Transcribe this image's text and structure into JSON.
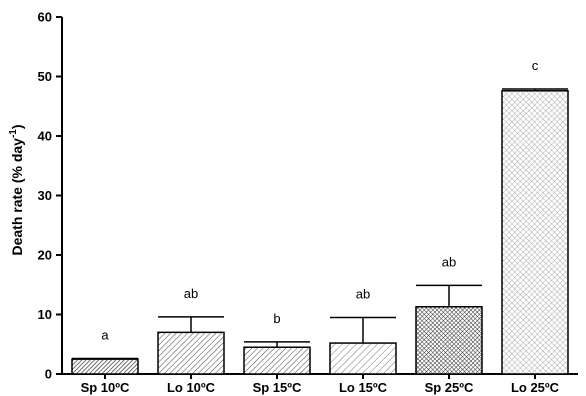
{
  "chart_data": {
    "type": "bar",
    "categories": [
      "Sp 10ºC",
      "Lo 10ºC",
      "Sp 15ºC",
      "Lo 15ºC",
      "Sp 25ºC",
      "Lo 25ºC"
    ],
    "values": [
      2.5,
      7.0,
      4.5,
      5.2,
      11.3,
      47.6
    ],
    "error": [
      0.1,
      2.6,
      0.9,
      4.3,
      3.6,
      0.3
    ],
    "annotations": [
      "a",
      "ab",
      "b",
      "ab",
      "ab",
      "c"
    ],
    "patterns": [
      "hatch-dense-diag",
      "hatch-diag",
      "hatch-diag",
      "hatch-diag-light",
      "crosshatch-dense",
      "crosshatch-light"
    ],
    "ylabel_main": "Death rate (% day",
    "ylabel_sup": "-1",
    "ylabel_close": ")",
    "ylim": [
      0,
      60
    ],
    "yticks": [
      "0",
      "10",
      "20",
      "30",
      "40",
      "50",
      "60"
    ],
    "grid": false
  }
}
